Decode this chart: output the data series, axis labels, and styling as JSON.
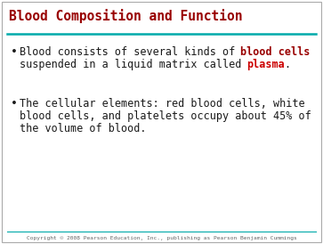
{
  "title": "Blood Composition and Function",
  "title_color": "#990000",
  "title_fontsize": 10.5,
  "line_color": "#00AAAA",
  "background_color": "#FFFFFF",
  "border_color": "#AAAAAA",
  "line1_segs": [
    {
      "text": "Blood consists of several kinds of ",
      "bold": false,
      "color": "#1a1a1a"
    },
    {
      "text": "blood cells",
      "bold": true,
      "color": "#990000"
    }
  ],
  "line2_segs": [
    {
      "text": "suspended in a liquid matrix called ",
      "bold": false,
      "color": "#1a1a1a"
    },
    {
      "text": "plasma",
      "bold": true,
      "color": "#CC0000"
    },
    {
      "text": ".",
      "bold": false,
      "color": "#1a1a1a"
    }
  ],
  "bullet2_line1": "The cellular elements: red blood cells, white",
  "bullet2_line2": "blood cells, and platelets occupy about 45% of",
  "bullet2_line3": "the volume of blood.",
  "bullet2_color": "#1a1a1a",
  "copyright_text": "Copyright © 2008 Pearson Education, Inc., publishing as Pearson Benjamin Cummings",
  "copyright_color": "#666666",
  "copyright_fontsize": 4.5,
  "body_fontsize": 8.5
}
